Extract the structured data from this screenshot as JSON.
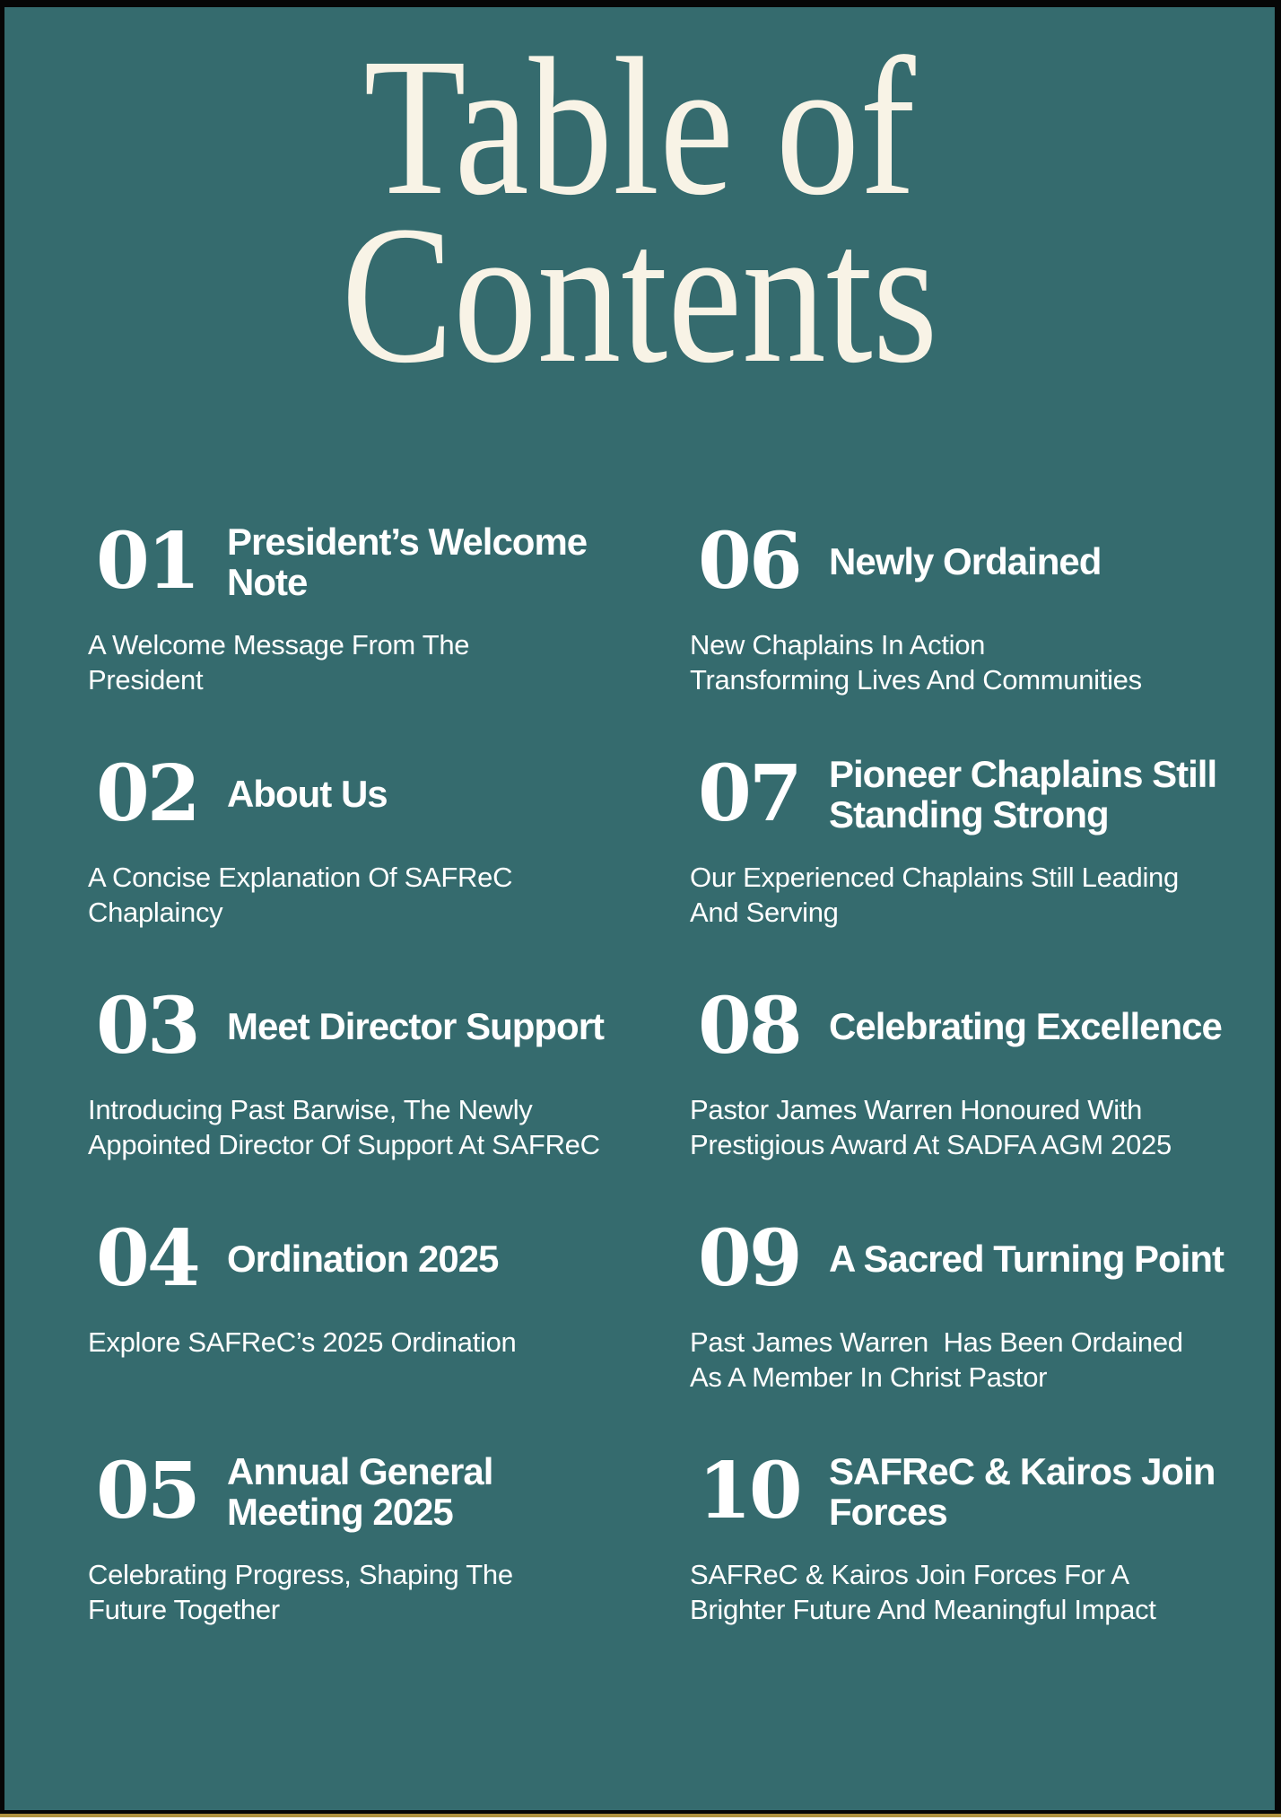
{
  "page": {
    "title": "Table of\nContents",
    "colors": {
      "background": "#356b6e",
      "frame": "#060606",
      "title_text": "#f8f3e6",
      "body_text": "#ffffff",
      "accent_line": "#b0923f",
      "edge_strip": "#fdfdfc"
    }
  },
  "columns": [
    {
      "side": "left",
      "entries": [
        {
          "number": "01",
          "title": "President’s Welcome\nNote",
          "description": "A Welcome Message From The\nPresident"
        },
        {
          "number": "02",
          "title": "About Us",
          "description": "A Concise Explanation Of SAFReC\nChaplaincy"
        },
        {
          "number": "03",
          "title": "Meet Director Support",
          "description": "Introducing Past Barwise, The Newly\nAppointed Director Of Support At SAFReC"
        },
        {
          "number": "04",
          "title": "Ordination 2025",
          "description": "Explore SAFReC’s 2025 Ordination"
        },
        {
          "number": "05",
          "title": "Annual General\nMeeting 2025",
          "description": "Celebrating Progress, Shaping The\nFuture Together"
        }
      ]
    },
    {
      "side": "right",
      "entries": [
        {
          "number": "06",
          "title": "Newly Ordained",
          "description": "New Chaplains In Action\nTransforming Lives And Communities"
        },
        {
          "number": "07",
          "title": "Pioneer Chaplains Still\nStanding Strong",
          "description": "Our Experienced Chaplains Still Leading\nAnd Serving"
        },
        {
          "number": "08",
          "title": "Celebrating Excellence",
          "description": "Pastor James Warren Honoured With\nPrestigious Award At SADFA AGM 2025"
        },
        {
          "number": "09",
          "title": "A Sacred Turning Point",
          "description": "Past James Warren  Has Been Ordained\nAs A Member In Christ Pastor"
        },
        {
          "number": "10",
          "title": "SAFReC & Kairos Join\nForces",
          "description": "SAFReC & Kairos Join Forces For A\nBrighter Future And Meaningful Impact"
        }
      ]
    }
  ]
}
